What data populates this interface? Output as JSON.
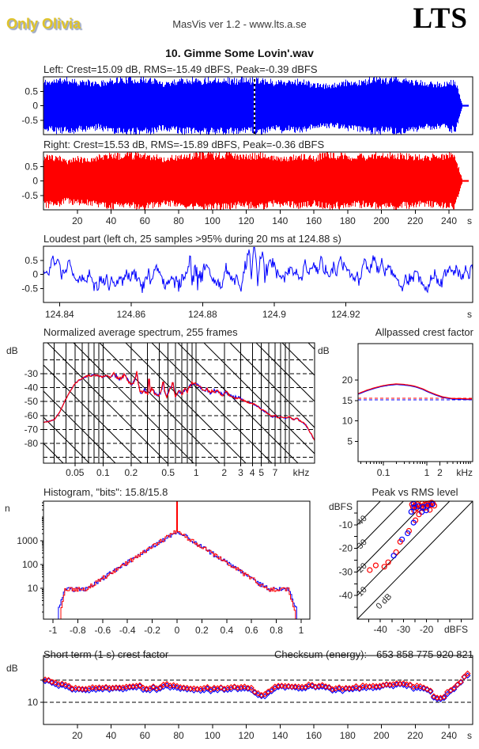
{
  "header": {
    "brand": "Only Olivia",
    "app_info": "MasVis ver 1.2 - www.lts.a.se",
    "logo": "LTS"
  },
  "title": "10. Gimme Some Lovin'.wav",
  "labels": {
    "left_stats": "Left: Crest=15.09 dB, RMS=-15.49 dBFS, Peak=-0.39 dBFS",
    "right_stats": "Right: Crest=15.53 dB, RMS=-15.89 dBFS, Peak=-0.36 dBFS",
    "loudest": "Loudest part (left ch, 25 samples >95% during 20 ms at 124.88 s)",
    "spectrum": "Normalized average spectrum, 255 frames",
    "allpassed": "Allpassed crest factor",
    "histogram": "Histogram, \"bits\": 15.8/15.8",
    "peak_vs_rms": "Peak vs RMS level",
    "short_term": "Short term (1 s) crest factor",
    "checksum_label": "Checksum (energy):",
    "checksum_value": "653 858 775 920 821"
  },
  "colors": {
    "left_channel": "#0000ff",
    "right_channel": "#ff0000",
    "text": "#262626",
    "grid": "#000000",
    "brand_fill": "#dfc32a",
    "brand_shadow": "#93a0bd"
  },
  "chart_data": [
    {
      "id": "waveform_left",
      "type": "waveform",
      "channel": "left",
      "color": "#0000ff",
      "crest_db": 15.09,
      "rms_dbfs": -15.49,
      "peak_dbfs": -0.39,
      "xlim": [
        0,
        254
      ],
      "ylim": [
        -1,
        1
      ],
      "yticks": [
        0.5,
        0,
        -0.5
      ],
      "ytick_labels": [
        "0.5",
        "0",
        "-0.5"
      ],
      "marker_time_s": 124.88,
      "fade_start_s": 243.5,
      "end_s": 252,
      "seed": 11
    },
    {
      "id": "waveform_right",
      "type": "waveform",
      "channel": "right",
      "color": "#ff0000",
      "crest_db": 15.53,
      "rms_dbfs": -15.89,
      "peak_dbfs": -0.36,
      "xlim": [
        0,
        254
      ],
      "ylim": [
        -1,
        1
      ],
      "yticks": [
        0.5,
        0,
        -0.5
      ],
      "ytick_labels": [
        "0.5",
        "0",
        "-0.5"
      ],
      "xticks": [
        20,
        40,
        60,
        80,
        100,
        120,
        140,
        160,
        180,
        200,
        220,
        240
      ],
      "xtick_labels": [
        "20",
        "40",
        "60",
        "80",
        "100",
        "120",
        "140",
        "160",
        "180",
        "200",
        "220",
        "240"
      ],
      "x_unit": "s",
      "fade_start_s": 243.5,
      "end_s": 252,
      "seed": 23
    },
    {
      "id": "loudest_part",
      "type": "line",
      "channel": "left",
      "color": "#0000ff",
      "xlim": [
        124.8355,
        124.9555
      ],
      "ylim": [
        -1,
        1
      ],
      "xticks": [
        124.84,
        124.86,
        124.88,
        124.9,
        124.92
      ],
      "xtick_labels": [
        "124.84",
        "124.86",
        "124.88",
        "124.9",
        "124.92"
      ],
      "x_unit": "s",
      "yticks": [
        0.5,
        0,
        -0.5
      ],
      "ytick_labels": [
        "0.5",
        "0",
        "-0.5"
      ],
      "events": [
        {
          "t": 124.877,
          "amp": 0.95
        },
        {
          "t": 124.895,
          "amp": 0.9
        }
      ],
      "seed": 31
    },
    {
      "id": "spectrum",
      "type": "line-log",
      "frames": 255,
      "series": [
        {
          "name": "left",
          "color": "#0000ff"
        },
        {
          "name": "right",
          "color": "#ff0000"
        }
      ],
      "xlim": [
        0.023,
        18.6
      ],
      "ylim": [
        -94,
        -8
      ],
      "xticks": [
        0.05,
        0.1,
        0.2,
        0.5,
        1,
        2,
        3,
        4,
        5,
        7
      ],
      "xtick_labels": [
        "0.05",
        "0.1",
        "0.2",
        "0.5",
        "1",
        "2",
        "3",
        "4",
        "5",
        "7"
      ],
      "x_unit": "kHz",
      "y_unit": "dB",
      "yticks": [
        -30,
        -40,
        -50,
        -60,
        -70,
        -80
      ],
      "ytick_labels": [
        "-30",
        "-40",
        "-50",
        "-60",
        "-70",
        "-80"
      ],
      "dashed_levels": [
        -20,
        -30,
        -40,
        -50,
        -60,
        -70,
        -80,
        -90
      ],
      "points": [
        [
          0.023,
          -65
        ],
        [
          0.027,
          -64
        ],
        [
          0.03,
          -63
        ],
        [
          0.034,
          -58
        ],
        [
          0.04,
          -48
        ],
        [
          0.045,
          -42
        ],
        [
          0.05,
          -37
        ],
        [
          0.06,
          -33
        ],
        [
          0.07,
          -31.5
        ],
        [
          0.08,
          -31
        ],
        [
          0.09,
          -31.5
        ],
        [
          0.1,
          -32.5
        ],
        [
          0.11,
          -31
        ],
        [
          0.12,
          -33
        ],
        [
          0.13,
          -30
        ],
        [
          0.15,
          -34
        ],
        [
          0.17,
          -31
        ],
        [
          0.19,
          -36
        ],
        [
          0.21,
          -38
        ],
        [
          0.23,
          -29
        ],
        [
          0.25,
          -44
        ],
        [
          0.28,
          -42
        ],
        [
          0.3,
          -45
        ],
        [
          0.33,
          -41
        ],
        [
          0.36,
          -44
        ],
        [
          0.4,
          -46
        ],
        [
          0.44,
          -38
        ],
        [
          0.48,
          -47
        ],
        [
          0.52,
          -41
        ],
        [
          0.56,
          -37
        ],
        [
          0.6,
          -46
        ],
        [
          0.65,
          -42
        ],
        [
          0.7,
          -45
        ],
        [
          0.75,
          -41
        ],
        [
          0.8,
          -43
        ],
        [
          0.85,
          -39
        ],
        [
          0.9,
          -37
        ],
        [
          0.95,
          -38
        ],
        [
          1.0,
          -36.5
        ],
        [
          1.1,
          -40
        ],
        [
          1.2,
          -43
        ],
        [
          1.3,
          -41
        ],
        [
          1.4,
          -44
        ],
        [
          1.5,
          -42
        ],
        [
          1.7,
          -43
        ],
        [
          1.9,
          -45
        ],
        [
          2.1,
          -43
        ],
        [
          2.3,
          -46
        ],
        [
          2.6,
          -47
        ],
        [
          3.0,
          -48
        ],
        [
          3.4,
          -50
        ],
        [
          3.8,
          -51
        ],
        [
          4.2,
          -52
        ],
        [
          4.7,
          -54
        ],
        [
          5.2,
          -56
        ],
        [
          6.0,
          -59
        ],
        [
          6.5,
          -61
        ],
        [
          7.0,
          -60
        ],
        [
          7.5,
          -62
        ],
        [
          8.0,
          -61
        ],
        [
          9.0,
          -62
        ],
        [
          10,
          -61
        ],
        [
          11,
          -63
        ],
        [
          12,
          -62
        ],
        [
          13,
          -64
        ],
        [
          14,
          -65
        ],
        [
          15,
          -67
        ],
        [
          16,
          -70
        ],
        [
          17,
          -73
        ],
        [
          18,
          -76
        ],
        [
          18.6,
          -78
        ]
      ],
      "spikes": [
        [
          0.13,
          -30
        ],
        [
          0.17,
          -31
        ],
        [
          0.23,
          -29
        ],
        [
          0.31,
          -34
        ],
        [
          0.44,
          -36
        ],
        [
          0.56,
          -36.5
        ]
      ]
    },
    {
      "id": "allpassed_crest",
      "type": "line-log",
      "series": [
        {
          "name": "left",
          "color": "#0000ff"
        },
        {
          "name": "right",
          "color": "#ff0000"
        }
      ],
      "xlim": [
        0.026,
        11.4
      ],
      "ylim": [
        0,
        29
      ],
      "xticks": [
        0.1,
        1,
        2
      ],
      "xtick_labels": [
        "0.1",
        "1",
        "2"
      ],
      "x_unit": "kHz",
      "y_unit": "dB",
      "yticks": [
        5,
        10,
        15,
        20
      ],
      "ytick_labels": [
        "5",
        "10",
        "15",
        "20"
      ],
      "dashed": [
        {
          "level": 15.6,
          "color": "#ff0000"
        },
        {
          "level": 15.15,
          "color": "#0000ff"
        }
      ],
      "points": [
        [
          0.026,
          16.7
        ],
        [
          0.04,
          17.5
        ],
        [
          0.06,
          18.1
        ],
        [
          0.09,
          18.6
        ],
        [
          0.13,
          18.9
        ],
        [
          0.2,
          19.1
        ],
        [
          0.28,
          19.0
        ],
        [
          0.4,
          18.8
        ],
        [
          0.55,
          18.5
        ],
        [
          0.8,
          17.9
        ],
        [
          1.1,
          17.2
        ],
        [
          1.6,
          16.5
        ],
        [
          2.2,
          16.0
        ],
        [
          3,
          15.7
        ],
        [
          4,
          15.5
        ],
        [
          6,
          15.5
        ],
        [
          8,
          15.4
        ],
        [
          11.4,
          15.4
        ]
      ],
      "blue_offset": -0.15
    },
    {
      "id": "histogram",
      "type": "histogram-log",
      "bits": "15.8/15.8",
      "series": [
        {
          "name": "left",
          "color": "#0000ff",
          "cut_low": -0.955,
          "cut_high": 0.965,
          "peak_count": 2600,
          "seed": 61
        },
        {
          "name": "right",
          "color": "#ff0000",
          "cut_low": -0.935,
          "cut_high": 0.95,
          "peak_count": 2600,
          "spike_count": 46000,
          "seed": 62
        }
      ],
      "xlim": [
        -1.076,
        1.051
      ],
      "ylim": [
        0.5,
        46700
      ],
      "xticks": [
        -1,
        -0.8,
        -0.6,
        -0.4,
        -0.2,
        0,
        0.2,
        0.4,
        0.6,
        0.8,
        1
      ],
      "xtick_labels": [
        "-1",
        "-0.8",
        "-0.6",
        "-0.4",
        "-0.2",
        "0",
        "0.2",
        "0.4",
        "0.6",
        "0.8",
        "1"
      ],
      "yticks": [
        10,
        100,
        1000
      ],
      "ytick_labels": [
        "10",
        "100",
        "1000"
      ],
      "y_unit": "n",
      "slope_log_per_unit": 3.33,
      "apex_log": 3.41,
      "plateau_log": 0.95
    },
    {
      "id": "peak_vs_rms",
      "type": "scatter",
      "xlim": [
        -50,
        0
      ],
      "ylim": [
        -50,
        0
      ],
      "xticks": [
        -40,
        -30,
        -20
      ],
      "xtick_labels": [
        "-40",
        "-30",
        "-20"
      ],
      "yticks": [
        -10,
        -20,
        -30,
        -40
      ],
      "ytick_labels": [
        "-10",
        "-20",
        "-30",
        "-40"
      ],
      "x_unit": "dBFS",
      "y_unit": "dBFS",
      "diagonals": [
        0,
        10,
        20,
        30,
        40
      ],
      "diagonal_labels": [
        "0 dB",
        "10",
        "20",
        "30",
        "40"
      ],
      "points": [
        {
          "rms": -17.2,
          "peak": -1.0,
          "ch": "r"
        },
        {
          "rms": -17.8,
          "peak": -0.6,
          "ch": "r"
        },
        {
          "rms": -18.3,
          "peak": -1.6,
          "ch": "r"
        },
        {
          "rms": -18.9,
          "peak": -0.9,
          "ch": "r"
        },
        {
          "rms": -19.4,
          "peak": -2.1,
          "ch": "r"
        },
        {
          "rms": -19.9,
          "peak": -1.2,
          "ch": "r"
        },
        {
          "rms": -20.4,
          "peak": -2.7,
          "ch": "r"
        },
        {
          "rms": -20.9,
          "peak": -1.5,
          "ch": "r"
        },
        {
          "rms": -21.4,
          "peak": -3.1,
          "ch": "r"
        },
        {
          "rms": -21.9,
          "peak": -1.0,
          "ch": "r"
        },
        {
          "rms": -22.4,
          "peak": -2.3,
          "ch": "r"
        },
        {
          "rms": -22.9,
          "peak": -1.9,
          "ch": "r"
        },
        {
          "rms": -23.4,
          "peak": -3.4,
          "ch": "r"
        },
        {
          "rms": -23.9,
          "peak": -1.3,
          "ch": "r"
        },
        {
          "rms": -24.4,
          "peak": -2.9,
          "ch": "r"
        },
        {
          "rms": -24.9,
          "peak": -1.7,
          "ch": "r"
        },
        {
          "rms": -25.4,
          "peak": -3.9,
          "ch": "r"
        },
        {
          "rms": -25.9,
          "peak": -2.5,
          "ch": "r"
        },
        {
          "rms": -16.6,
          "peak": -1.9,
          "ch": "r"
        },
        {
          "rms": -18.6,
          "peak": -3.7,
          "ch": "r"
        },
        {
          "rms": -26.3,
          "peak": -1.4,
          "ch": "r"
        },
        {
          "rms": -17.5,
          "peak": -1.3,
          "ch": "l"
        },
        {
          "rms": -19.6,
          "peak": -1.9,
          "ch": "l"
        },
        {
          "rms": -21.6,
          "peak": -2.5,
          "ch": "l"
        },
        {
          "rms": -23.6,
          "peak": -2.1,
          "ch": "l"
        },
        {
          "rms": -25.6,
          "peak": -1.1,
          "ch": "l"
        },
        {
          "rms": -26.6,
          "peak": -4.5,
          "ch": "l"
        },
        {
          "rms": -20.1,
          "peak": -3.9,
          "ch": "l"
        },
        {
          "rms": -22.1,
          "peak": -4.6,
          "ch": "l"
        },
        {
          "rms": -25.3,
          "peak": -2.7,
          "ch": "l"
        },
        {
          "rms": -23.3,
          "peak": -5.6,
          "ch": "r"
        },
        {
          "rms": -24.8,
          "peak": -8.1,
          "ch": "r"
        },
        {
          "rms": -25.6,
          "peak": -9.1,
          "ch": "l"
        },
        {
          "rms": -27.6,
          "peak": -12.6,
          "ch": "r"
        },
        {
          "rms": -28.2,
          "peak": -13.6,
          "ch": "l"
        },
        {
          "rms": -30.6,
          "peak": -16.2,
          "ch": "l"
        },
        {
          "rms": -31.4,
          "peak": -17.2,
          "ch": "r"
        },
        {
          "rms": -33.2,
          "peak": -21.6,
          "ch": "r"
        },
        {
          "rms": -34.2,
          "peak": -23.1,
          "ch": "l"
        },
        {
          "rms": -36.6,
          "peak": -25.9,
          "ch": "r"
        },
        {
          "rms": -38.3,
          "peak": -27.8,
          "ch": "r"
        },
        {
          "rms": -42.0,
          "peak": -27.2,
          "ch": "r"
        },
        {
          "rms": -44.6,
          "peak": -29.2,
          "ch": "r"
        }
      ]
    },
    {
      "id": "short_term_crest",
      "type": "scatter-time",
      "marker": "diamond",
      "xlim": [
        0,
        254
      ],
      "ylim": [
        5,
        20.5
      ],
      "xticks": [
        20,
        40,
        60,
        80,
        100,
        120,
        140,
        160,
        180,
        200,
        220,
        240
      ],
      "xtick_labels": [
        "20",
        "40",
        "60",
        "80",
        "100",
        "120",
        "140",
        "160",
        "180",
        "200",
        "220",
        "240"
      ],
      "x_unit": "s",
      "y_unit": "dB",
      "yticks": [
        10,
        15
      ],
      "ytick_labels": [
        "10",
        ""
      ],
      "dashed_levels": [
        15,
        10
      ],
      "profile": {
        "base": 13.3,
        "start_boost": 1.9,
        "end_boost": 3.0,
        "dips": [
          {
            "t": 129,
            "depth": 2.0
          },
          {
            "t": 234,
            "depth": 2.4
          }
        ]
      },
      "seed": 71
    }
  ]
}
